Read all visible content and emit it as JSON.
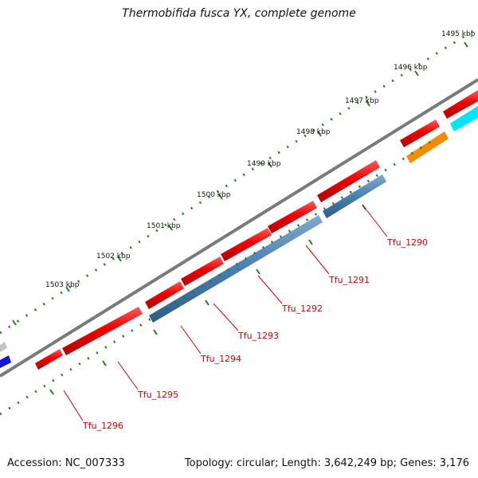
{
  "title": "Thermobifida fusca YX, complete genome",
  "footer": {
    "accession": "Accession: NC_007333",
    "summary": "Topology: circular; Length: 3,642,249 bp; Genes: 3,176"
  },
  "colors": {
    "backbone": "#7a7a7a",
    "forward_gene": "#ee0000",
    "reverse_gene": "#4a7fb0",
    "dot": "#2b7a2b",
    "label": "#d40000",
    "blue_gene": "#1515e0",
    "cyan_gene": "#00e5ff",
    "orange_gene": "#f28c00",
    "gray_gene": "#c4c4c4"
  },
  "kbp_labels": [
    "1495 kbp",
    "1496 kbp",
    "1497 kbp",
    "1498 kbp",
    "1499 kbp",
    "1500 kbp",
    "1501 kbp",
    "1502 kbp",
    "1503 kbp"
  ],
  "gene_labels": [
    "Tfu_1290",
    "Tfu_1291",
    "Tfu_1292",
    "Tfu_1293",
    "Tfu_1294",
    "Tfu_1295",
    "Tfu_1296"
  ]
}
